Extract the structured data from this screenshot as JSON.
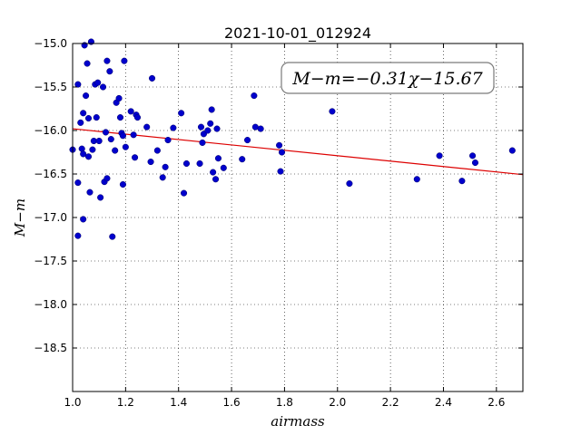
{
  "chart_data": {
    "type": "scatter",
    "title": "2021-10-01_012924",
    "xlabel": "airmass",
    "ylabel": "M−m",
    "xlim": [
      1.0,
      2.7
    ],
    "ylim": [
      -19.0,
      -15.0
    ],
    "y_inverted": true,
    "x_ticks": [
      1.0,
      1.2,
      1.4,
      1.6,
      1.8,
      2.0,
      2.2,
      2.4,
      2.6
    ],
    "x_tick_labels": [
      "1.0",
      "1.2",
      "1.4",
      "1.6",
      "1.8",
      "2.0",
      "2.2",
      "2.4",
      "2.6"
    ],
    "y_ticks": [
      -15.0,
      -15.5,
      -16.0,
      -16.5,
      -17.0,
      -17.5,
      -18.0,
      -18.5
    ],
    "y_tick_labels": [
      "−15.0",
      "−15.5",
      "−16.0",
      "−16.5",
      "−17.0",
      "−17.5",
      "−18.0",
      "−18.5"
    ],
    "grid": true,
    "annotation": "M−m=−0.31χ−15.67",
    "annotation_position": "top-right",
    "point_color": "#0000cc",
    "fit_color": "#dd0000",
    "fit": {
      "slope": -0.31,
      "intercept": -15.67
    },
    "points": [
      [
        1.0,
        -16.22
      ],
      [
        1.02,
        -15.47
      ],
      [
        1.02,
        -16.6
      ],
      [
        1.02,
        -17.21
      ],
      [
        1.03,
        -15.91
      ],
      [
        1.035,
        -16.21
      ],
      [
        1.04,
        -15.8
      ],
      [
        1.04,
        -16.27
      ],
      [
        1.04,
        -17.02
      ],
      [
        1.045,
        -15.02
      ],
      [
        1.05,
        -15.6
      ],
      [
        1.055,
        -15.23
      ],
      [
        1.06,
        -16.3
      ],
      [
        1.06,
        -15.86
      ],
      [
        1.065,
        -16.71
      ],
      [
        1.07,
        -14.98
      ],
      [
        1.075,
        -16.22
      ],
      [
        1.08,
        -16.12
      ],
      [
        1.085,
        -15.47
      ],
      [
        1.09,
        -15.85
      ],
      [
        1.095,
        -15.45
      ],
      [
        1.1,
        -16.12
      ],
      [
        1.105,
        -16.77
      ],
      [
        1.115,
        -15.5
      ],
      [
        1.12,
        -16.59
      ],
      [
        1.125,
        -16.02
      ],
      [
        1.13,
        -15.2
      ],
      [
        1.13,
        -16.55
      ],
      [
        1.14,
        -15.32
      ],
      [
        1.145,
        -16.1
      ],
      [
        1.15,
        -17.22
      ],
      [
        1.16,
        -16.23
      ],
      [
        1.165,
        -15.68
      ],
      [
        1.175,
        -15.63
      ],
      [
        1.18,
        -15.85
      ],
      [
        1.185,
        -16.03
      ],
      [
        1.19,
        -16.62
      ],
      [
        1.19,
        -16.06
      ],
      [
        1.195,
        -15.2
      ],
      [
        1.2,
        -16.19
      ],
      [
        1.22,
        -15.78
      ],
      [
        1.23,
        -16.05
      ],
      [
        1.235,
        -16.31
      ],
      [
        1.24,
        -15.82
      ],
      [
        1.245,
        -15.85
      ],
      [
        1.28,
        -15.96
      ],
      [
        1.295,
        -16.36
      ],
      [
        1.3,
        -15.4
      ],
      [
        1.32,
        -16.23
      ],
      [
        1.34,
        -16.54
      ],
      [
        1.35,
        -16.42
      ],
      [
        1.36,
        -16.11
      ],
      [
        1.38,
        -15.97
      ],
      [
        1.41,
        -15.8
      ],
      [
        1.42,
        -16.72
      ],
      [
        1.43,
        -16.38
      ],
      [
        1.48,
        -16.38
      ],
      [
        1.485,
        -15.96
      ],
      [
        1.49,
        -16.14
      ],
      [
        1.495,
        -16.04
      ],
      [
        1.51,
        -16.0
      ],
      [
        1.52,
        -15.92
      ],
      [
        1.525,
        -15.76
      ],
      [
        1.53,
        -16.48
      ],
      [
        1.54,
        -16.56
      ],
      [
        1.545,
        -15.98
      ],
      [
        1.55,
        -16.32
      ],
      [
        1.57,
        -16.43
      ],
      [
        1.64,
        -16.33
      ],
      [
        1.66,
        -16.11
      ],
      [
        1.685,
        -15.6
      ],
      [
        1.69,
        -15.96
      ],
      [
        1.71,
        -15.98
      ],
      [
        1.78,
        -16.17
      ],
      [
        1.785,
        -16.47
      ],
      [
        1.79,
        -16.25
      ],
      [
        1.98,
        -15.78
      ],
      [
        2.045,
        -16.61
      ],
      [
        2.3,
        -16.56
      ],
      [
        2.385,
        -16.29
      ],
      [
        2.47,
        -16.58
      ],
      [
        2.51,
        -16.29
      ],
      [
        2.52,
        -16.37
      ],
      [
        2.66,
        -16.23
      ]
    ]
  }
}
